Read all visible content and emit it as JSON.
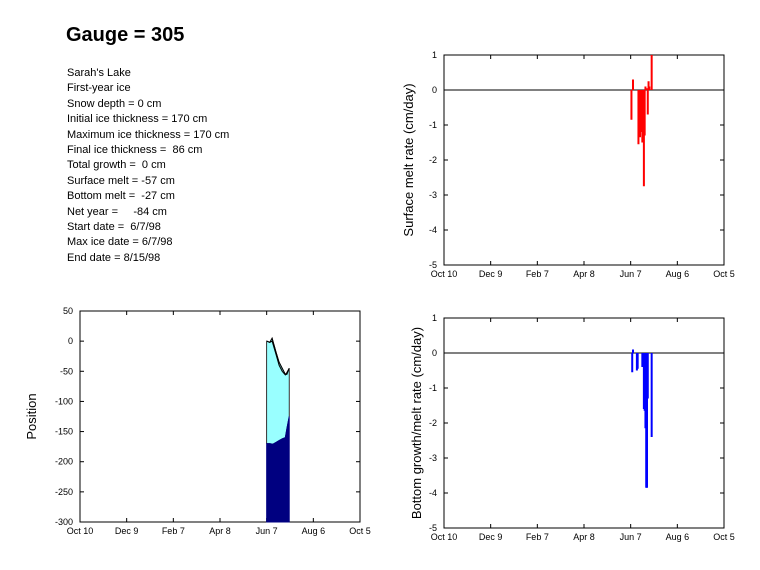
{
  "title": "Gauge = 305",
  "info": [
    "Sarah's Lake",
    "First-year ice",
    "Snow depth = 0 cm",
    "Initial ice thickness = 170 cm",
    "Maximum ice thickness = 170 cm",
    "Final ice thickness =  86 cm",
    "Total growth =  0 cm",
    "Surface melt = -57 cm",
    "Bottom melt =  -27 cm",
    "Net year =     -84 cm",
    "Start date =  6/7/98",
    "Max ice date = 6/7/98",
    "End date = 8/15/98"
  ],
  "colors": {
    "surface_bars": "#ff0000",
    "bottom_bars": "#0000ff",
    "snow_ice_fill": "#99ffff",
    "ice_fill": "#000080"
  },
  "chart_data": [
    {
      "id": "surface",
      "type": "bar",
      "xlabel": "",
      "ylabel": "Surface melt rate (cm/day)",
      "x_ticks": [
        "Oct 10",
        "Dec 9",
        "Feb 7",
        "Apr 8",
        "Jun 7",
        "Aug 6",
        "Oct 5"
      ],
      "xlim": [
        0,
        360
      ],
      "ylim": [
        -5,
        1
      ],
      "y_ticks": [
        1,
        0,
        -1,
        -2,
        -3,
        -4,
        -5
      ],
      "zero_line": true,
      "x": [
        241,
        243,
        250,
        252,
        253,
        254,
        255,
        256,
        257,
        258,
        259,
        261,
        262,
        263,
        264,
        267
      ],
      "values": [
        -0.85,
        0.3,
        -1.55,
        -1.35,
        -0.45,
        -1.2,
        -1.5,
        -1.45,
        -2.75,
        -1.3,
        0.1,
        0.05,
        -0.7,
        0.25,
        0.1,
        1.0
      ]
    },
    {
      "id": "bottom",
      "type": "bar",
      "xlabel": "",
      "ylabel": "Bottom growth/melt rate (cm/day)",
      "x_ticks": [
        "Oct 10",
        "Dec 9",
        "Feb 7",
        "Apr 8",
        "Jun 7",
        "Aug 6",
        "Oct 5"
      ],
      "xlim": [
        0,
        360
      ],
      "ylim": [
        -5,
        1
      ],
      "y_ticks": [
        1,
        0,
        -1,
        -2,
        -3,
        -4,
        -5
      ],
      "zero_line": true,
      "x": [
        242,
        243,
        248,
        249,
        255,
        256,
        257,
        258,
        259,
        260,
        261,
        262,
        267
      ],
      "values": [
        -0.55,
        0.1,
        -0.5,
        -0.45,
        -0.4,
        -0.3,
        -1.6,
        -1.65,
        -2.15,
        -3.85,
        -3.85,
        -1.3,
        -2.4
      ],
      "widths": [
        1,
        1,
        1,
        1,
        1,
        1,
        1,
        1,
        2,
        1,
        1,
        1,
        1
      ]
    },
    {
      "id": "position",
      "type": "area",
      "xlabel": "",
      "ylabel": "Position",
      "x_ticks": [
        "Oct 10",
        "Dec 9",
        "Feb 7",
        "Apr 8",
        "Jun 7",
        "Aug 6",
        "Oct 5"
      ],
      "xlim": [
        0,
        360
      ],
      "ylim": [
        -300,
        50
      ],
      "y_ticks": [
        50,
        0,
        -50,
        -100,
        -150,
        -200,
        -250,
        -300
      ],
      "series": [
        {
          "role": "top",
          "x": [
            240,
            244,
            247,
            252,
            256,
            260,
            264,
            266,
            269
          ],
          "values": [
            0,
            -2,
            5,
            -18,
            -35,
            -45,
            -55,
            -55,
            -45
          ]
        },
        {
          "role": "ice_top",
          "x": [
            240,
            244,
            247,
            252,
            256,
            260,
            264,
            266,
            269
          ],
          "values": [
            0,
            -2,
            0,
            -22,
            -40,
            -50,
            -56,
            -52,
            -45
          ]
        },
        {
          "role": "bottom",
          "x": [
            240,
            244,
            248,
            252,
            256,
            260,
            264,
            266,
            269
          ],
          "values": [
            -170,
            -170,
            -171,
            -168,
            -165,
            -162,
            -160,
            -145,
            -125
          ]
        }
      ]
    }
  ]
}
